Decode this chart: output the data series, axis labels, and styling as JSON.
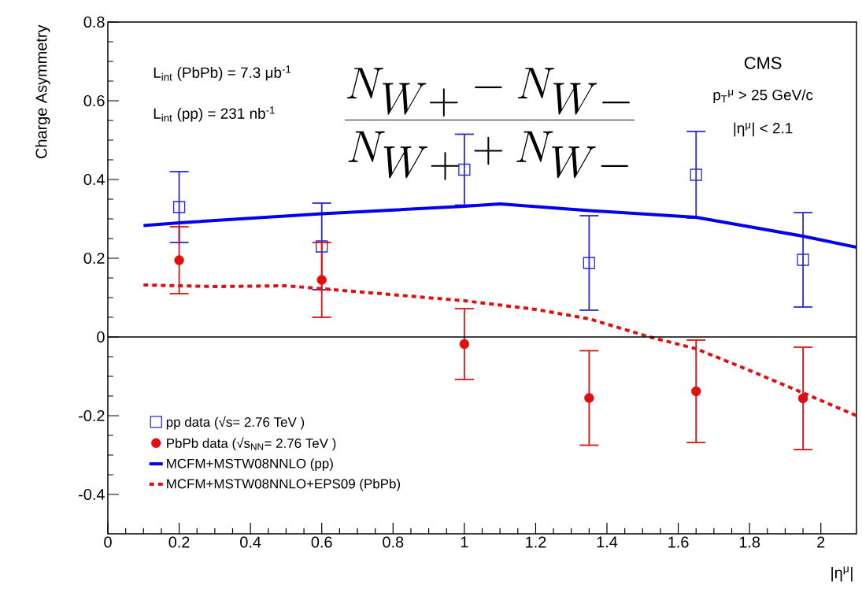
{
  "chart_data": {
    "type": "scatter",
    "xlabel": "|η$^{μ}$|",
    "ylabel": "Charge Asymmetry",
    "xlim": [
      0,
      2.1
    ],
    "ylim": [
      -0.5,
      0.8
    ],
    "xticks": [
      0,
      0.2,
      0.4,
      0.6,
      0.8,
      1,
      1.2,
      1.4,
      1.6,
      1.8,
      2
    ],
    "yticks": [
      -0.4,
      -0.2,
      0,
      0.2,
      0.4,
      0.6,
      0.8
    ],
    "grid": false,
    "legend": "bottom left",
    "ref_lines": [
      {
        "axis": "y",
        "value": 0,
        "color": "#000000"
      }
    ],
    "annotations": [
      "L$_{int}$ (PbPb) = 7.3 μb$^{-1}$",
      "L$_{int}$ (pp) = 231 nb$^{-1}$",
      "\\frac{N_{W+} - N_{W-}}{N_{W+} + N_{W-}}",
      "CMS",
      "p$_{T}$$^{μ}$ > 25 GeV/c",
      "|η$^{μ}$| < 2.1"
    ],
    "series": [
      {
        "name": "pp data (√s= 2.76 TeV )",
        "type": "scatter",
        "marker": "square",
        "color": "#2a2ad0",
        "x": [
          0.2,
          0.6,
          1.0,
          1.35,
          1.65,
          1.95
        ],
        "values": [
          0.33,
          0.23,
          0.425,
          0.188,
          0.412,
          0.196
        ],
        "errors": [
          0.09,
          0.11,
          0.09,
          0.12,
          0.11,
          0.12
        ]
      },
      {
        "name": "PbPb data (√s$_{NN}$= 2.76 TeV )",
        "type": "scatter",
        "marker": "circle",
        "color": "#e01010",
        "x": [
          0.2,
          0.6,
          1.0,
          1.35,
          1.65,
          1.95
        ],
        "values": [
          0.195,
          0.145,
          -0.018,
          -0.155,
          -0.138,
          -0.156
        ],
        "errors": [
          0.085,
          0.095,
          0.09,
          0.12,
          0.13,
          0.13
        ]
      },
      {
        "name": "MCFM+MSTW08NNLO (pp)",
        "type": "line",
        "line_style": "solid",
        "color": "#0000ee",
        "x": [
          0.1,
          0.2,
          0.6,
          1.0,
          1.1,
          1.35,
          1.65,
          1.95,
          2.1
        ],
        "values": [
          0.283,
          0.29,
          0.313,
          0.332,
          0.338,
          0.321,
          0.304,
          0.256,
          0.228
        ]
      },
      {
        "name": "MCFM+MSTW08NNLO+EPS09 (PbPb)",
        "type": "line",
        "line_style": "dashed",
        "color": "#e01010",
        "x": [
          0.1,
          0.3,
          0.5,
          0.7,
          1.0,
          1.2,
          1.35,
          1.52,
          1.65,
          1.8,
          1.95,
          2.1
        ],
        "values": [
          0.132,
          0.128,
          0.13,
          0.115,
          0.092,
          0.07,
          0.046,
          0.0,
          -0.03,
          -0.085,
          -0.142,
          -0.2
        ]
      }
    ]
  }
}
